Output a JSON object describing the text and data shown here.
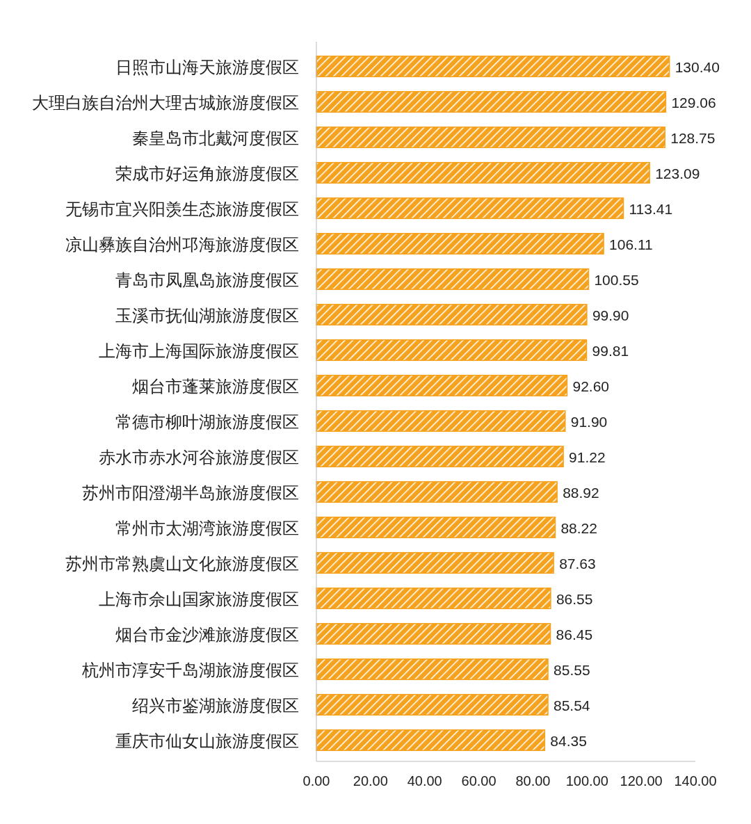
{
  "chart_data": {
    "type": "bar",
    "orientation": "horizontal",
    "categories": [
      "日照市山海天旅游度假区",
      "大理白族自治州大理古城旅游度假区",
      "秦皇岛市北戴河度假区",
      "荣成市好运角旅游度假区",
      "无锡市宜兴阳羡生态旅游度假区",
      "凉山彝族自治州邛海旅游度假区",
      "青岛市凤凰岛旅游度假区",
      "玉溪市抚仙湖旅游度假区",
      "上海市上海国际旅游度假区",
      "烟台市蓬莱旅游度假区",
      "常德市柳叶湖旅游度假区",
      "赤水市赤水河谷旅游度假区",
      "苏州市阳澄湖半岛旅游度假区",
      "常州市太湖湾旅游度假区",
      "苏州市常熟虞山文化旅游度假区",
      "上海市佘山国家旅游度假区",
      "烟台市金沙滩旅游度假区",
      "杭州市淳安千岛湖旅游度假区",
      "绍兴市鉴湖旅游度假区",
      "重庆市仙女山旅游度假区"
    ],
    "values": [
      130.4,
      129.06,
      128.75,
      123.09,
      113.41,
      106.11,
      100.55,
      99.9,
      99.81,
      92.6,
      91.9,
      91.22,
      88.92,
      88.22,
      87.63,
      86.55,
      86.45,
      85.55,
      85.54,
      84.35
    ],
    "value_labels": [
      "130.40",
      "129.06",
      "128.75",
      "123.09",
      "113.41",
      "106.11",
      "100.55",
      "99.90",
      "99.81",
      "92.60",
      "91.90",
      "91.22",
      "88.92",
      "88.22",
      "87.63",
      "86.55",
      "86.45",
      "85.55",
      "85.54",
      "84.35"
    ],
    "color": "#f5a21e",
    "xlim": [
      0,
      140
    ],
    "xticks": [
      {
        "value": 0,
        "label": "0.00"
      },
      {
        "value": 20,
        "label": "20.00"
      },
      {
        "value": 40,
        "label": "40.00"
      },
      {
        "value": 60,
        "label": "60.00"
      },
      {
        "value": 80,
        "label": "80.00"
      },
      {
        "value": 100,
        "label": "100.00"
      },
      {
        "value": 120,
        "label": "120.00"
      },
      {
        "value": 140,
        "label": "140.00"
      }
    ]
  }
}
